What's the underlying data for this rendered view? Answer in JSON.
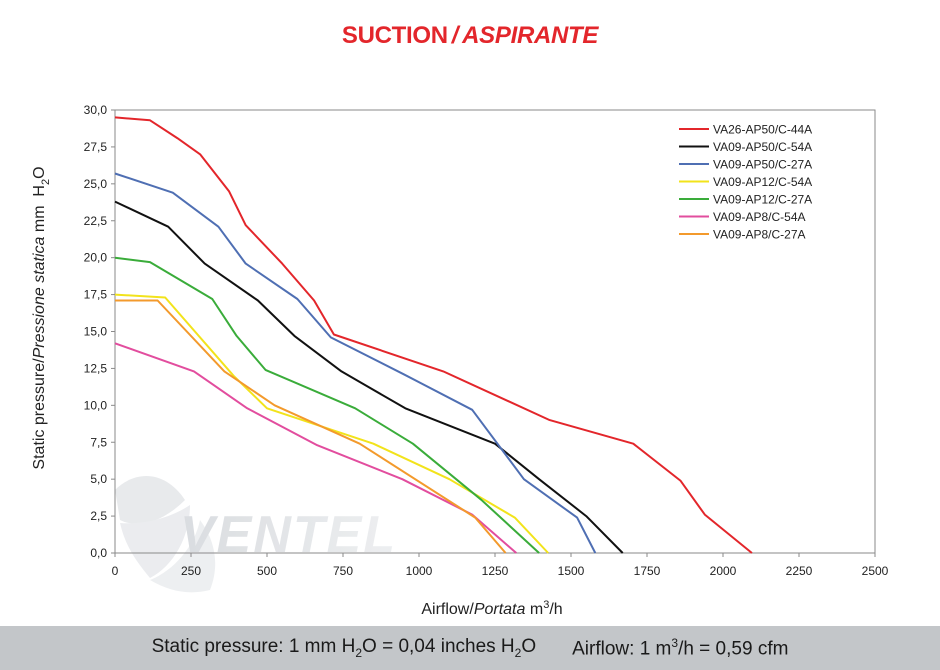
{
  "title": {
    "main": "SUCTION",
    "separator": "/",
    "italic": "ASPIRANTE"
  },
  "watermark": {
    "text": "VENTEL"
  },
  "footer": {
    "static_prefix": "Static pressure: 1 mm H",
    "static_sub1": "2",
    "static_mid": "O = 0,04 inches H",
    "static_sub2": "2",
    "static_end": "O",
    "airflow_prefix": "Airflow: 1 m",
    "airflow_sup": "3",
    "airflow_end": "/h = 0,59 cfm"
  },
  "chart_data": {
    "type": "line",
    "xlabel": {
      "main": "Airflow",
      "sep": "/",
      "italic": "Portata",
      "unit_pre": " m",
      "unit_sup": "3",
      "unit_post": "/h"
    },
    "ylabel": {
      "main": "Static pressure",
      "sep": "/",
      "italic": "Pressione statica",
      "unit_pre": " mm  H",
      "unit_sub": "2",
      "unit_post": "O"
    },
    "xlim": [
      0,
      2500
    ],
    "ylim": [
      0,
      30
    ],
    "x_ticks": [
      0,
      250,
      500,
      750,
      1000,
      1250,
      1500,
      1750,
      2000,
      2250,
      2500
    ],
    "x_tick_labels": [
      "0",
      "250",
      "500",
      "750",
      "1000",
      "1250",
      "1500",
      "1750",
      "2000",
      "2250",
      "2500"
    ],
    "y_ticks": [
      0,
      2.5,
      5,
      7.5,
      10,
      12.5,
      15,
      17.5,
      20,
      22.5,
      25,
      27.5,
      30
    ],
    "y_tick_labels": [
      "0,0",
      "2,5",
      "5,0",
      "7,5",
      "10,0",
      "12,5",
      "15,0",
      "17,5",
      "20,0",
      "22,5",
      "25,0",
      "27,5",
      "30,0"
    ],
    "grid": false,
    "legend_position": "top-right",
    "series": [
      {
        "name": "VA26-AP50/C-44A",
        "color": "#e3262b",
        "points": [
          [
            0,
            29.5
          ],
          [
            115,
            29.3
          ],
          [
            205,
            28.1
          ],
          [
            280,
            27.0
          ],
          [
            375,
            24.5
          ],
          [
            430,
            22.2
          ],
          [
            550,
            19.6
          ],
          [
            655,
            17.1
          ],
          [
            720,
            14.8
          ],
          [
            1080,
            12.3
          ],
          [
            1430,
            9.0
          ],
          [
            1705,
            7.4
          ],
          [
            1860,
            4.9
          ],
          [
            1940,
            2.6
          ],
          [
            2095,
            0
          ]
        ]
      },
      {
        "name": "VA09-AP50/C-54A",
        "color": "#111111",
        "points": [
          [
            0,
            23.8
          ],
          [
            175,
            22.1
          ],
          [
            295,
            19.6
          ],
          [
            470,
            17.1
          ],
          [
            590,
            14.7
          ],
          [
            745,
            12.3
          ],
          [
            955,
            9.8
          ],
          [
            1250,
            7.4
          ],
          [
            1395,
            5.0
          ],
          [
            1550,
            2.5
          ],
          [
            1670,
            0
          ]
        ]
      },
      {
        "name": "VA09-AP50/C-27A",
        "color": "#4f6fb3",
        "points": [
          [
            0,
            25.7
          ],
          [
            190,
            24.4
          ],
          [
            340,
            22.1
          ],
          [
            430,
            19.6
          ],
          [
            600,
            17.2
          ],
          [
            710,
            14.6
          ],
          [
            950,
            12.1
          ],
          [
            1175,
            9.7
          ],
          [
            1345,
            5.0
          ],
          [
            1520,
            2.4
          ],
          [
            1580,
            0
          ]
        ]
      },
      {
        "name": "VA09-AP12/C-54A",
        "color": "#f2e31b",
        "points": [
          [
            0,
            17.5
          ],
          [
            165,
            17.3
          ],
          [
            390,
            12.0
          ],
          [
            500,
            9.8
          ],
          [
            850,
            7.4
          ],
          [
            1100,
            5.0
          ],
          [
            1315,
            2.4
          ],
          [
            1425,
            0
          ]
        ]
      },
      {
        "name": "VA09-AP12/C-27A",
        "color": "#3aac3a",
        "points": [
          [
            0,
            20.0
          ],
          [
            115,
            19.7
          ],
          [
            320,
            17.2
          ],
          [
            400,
            14.7
          ],
          [
            495,
            12.4
          ],
          [
            790,
            9.8
          ],
          [
            980,
            7.4
          ],
          [
            1205,
            3.6
          ],
          [
            1395,
            0
          ]
        ]
      },
      {
        "name": "VA09-AP8/C-54A",
        "color": "#e24d9e",
        "points": [
          [
            0,
            14.2
          ],
          [
            260,
            12.3
          ],
          [
            435,
            9.8
          ],
          [
            665,
            7.3
          ],
          [
            945,
            5.0
          ],
          [
            1175,
            2.6
          ],
          [
            1320,
            0
          ]
        ]
      },
      {
        "name": "VA09-AP8/C-27A",
        "color": "#f39a2c",
        "points": [
          [
            0,
            17.1
          ],
          [
            140,
            17.1
          ],
          [
            360,
            12.3
          ],
          [
            525,
            10.0
          ],
          [
            805,
            7.4
          ],
          [
            1185,
            2.4
          ],
          [
            1285,
            0
          ]
        ]
      }
    ]
  }
}
